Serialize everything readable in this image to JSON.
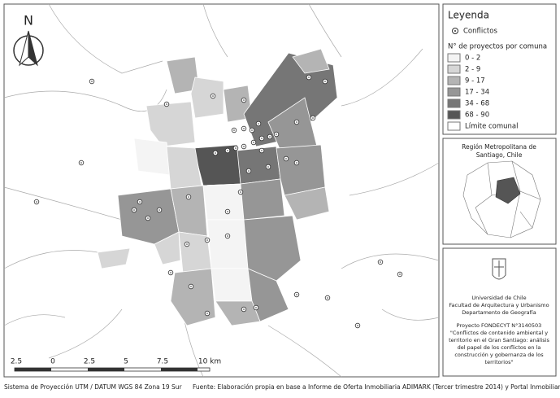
{
  "north": "N",
  "legend": {
    "title": "Leyenda",
    "conflicts": "Conflictos",
    "classes_title": "N° de proyectos por comuna",
    "classes": [
      {
        "label": "0 - 2",
        "color": "#f4f4f4"
      },
      {
        "label": "2 - 9",
        "color": "#d6d6d6"
      },
      {
        "label": "9 - 17",
        "color": "#b4b4b4"
      },
      {
        "label": "17 - 34",
        "color": "#969696"
      },
      {
        "label": "34 - 68",
        "color": "#767676"
      },
      {
        "label": "68 - 90",
        "color": "#555555"
      }
    ],
    "boundary": "Límite comunal"
  },
  "scale_bar": {
    "labels": [
      "2.5",
      "0",
      "2.5",
      "5",
      "7.5",
      "10 km"
    ]
  },
  "inset": {
    "title": [
      "Región Metropolitana de",
      "Santiago, Chile"
    ]
  },
  "institution": {
    "lines": [
      "Universidad de Chile",
      "Facultad de Arquitectura y Urbanismo",
      "Departamento de Geografía"
    ],
    "project": [
      "Proyecto FONDECYT N°3140503",
      "\"Conflictos de contenido ambiental y",
      "territorio en el Gran Santiago: análisis",
      "del papel de los conflictos en la",
      "construcción y gobernanza de los",
      "territorios\""
    ]
  },
  "footer": {
    "projection": "Sistema de Proyección UTM / DATUM WGS 84 Zona 19 Sur",
    "source": "Fuente: Elaboración propia en base a Informe de Oferta Inmobiliaria ADIMARK (Tercer trimestre 2014) y Portal Inmobiliario"
  }
}
